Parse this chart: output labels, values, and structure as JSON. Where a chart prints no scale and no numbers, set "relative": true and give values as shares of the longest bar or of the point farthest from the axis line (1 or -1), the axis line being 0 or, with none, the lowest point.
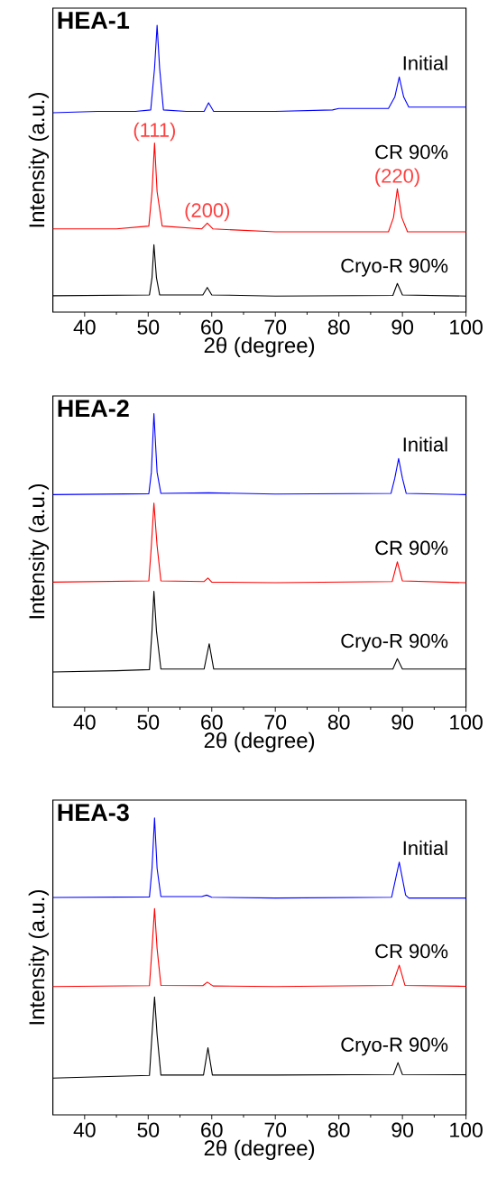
{
  "chart_data": [
    {
      "type": "line",
      "title": "HEA-1",
      "xlabel": "2θ (degree)",
      "ylabel": "Intensity (a.u.)",
      "xlim": [
        35,
        100
      ],
      "xticks": [
        40,
        50,
        60,
        70,
        80,
        90,
        100
      ],
      "relative": true,
      "series": [
        {
          "name": "Initial",
          "color": "#0000ff",
          "x": [
            35,
            42,
            48,
            50.4,
            51.0,
            51.4,
            51.8,
            52.4,
            56,
            58.8,
            59.5,
            60.3,
            70,
            79,
            80,
            87.8,
            88.8,
            89.5,
            90.2,
            91,
            95,
            100
          ],
          "values": [
            0.695,
            0.7,
            0.7,
            0.705,
            0.85,
            1.0,
            0.85,
            0.705,
            0.7,
            0.7,
            0.73,
            0.7,
            0.7,
            0.705,
            0.71,
            0.71,
            0.75,
            0.82,
            0.75,
            0.715,
            0.715,
            0.715
          ]
        },
        {
          "name": "CR 90%",
          "color": "#ff0000",
          "x": [
            35,
            45,
            50.1,
            50.6,
            51.0,
            51.4,
            52.2,
            58.4,
            59.3,
            60.2,
            70,
            87.8,
            88.6,
            89.2,
            89.9,
            90.8,
            100
          ],
          "values": [
            0.29,
            0.29,
            0.3,
            0.42,
            0.59,
            0.42,
            0.3,
            0.29,
            0.31,
            0.29,
            0.28,
            0.28,
            0.33,
            0.43,
            0.33,
            0.28,
            0.28
          ]
        },
        {
          "name": "Cryo-R 90%",
          "color": "#000000",
          "x": [
            35,
            50.2,
            50.6,
            50.9,
            51.3,
            51.8,
            58.6,
            59.3,
            60,
            70,
            88.5,
            89.2,
            90,
            100
          ],
          "values": [
            0.057,
            0.06,
            0.12,
            0.235,
            0.12,
            0.06,
            0.06,
            0.086,
            0.06,
            0.056,
            0.058,
            0.1,
            0.06,
            0.056
          ]
        }
      ],
      "annotations": [
        {
          "text": "(111)",
          "x": 51.0,
          "y": 0.59
        },
        {
          "text": "(200)",
          "x": 59.3,
          "y": 0.31
        },
        {
          "text": "(220)",
          "x": 89.2,
          "y": 0.43
        }
      ]
    },
    {
      "type": "line",
      "title": "HEA-2",
      "xlabel": "2θ (degree)",
      "ylabel": "Intensity (a.u.)",
      "xlim": [
        35,
        100
      ],
      "xticks": [
        40,
        50,
        60,
        70,
        80,
        90,
        100
      ],
      "relative": true,
      "series": [
        {
          "name": "Initial",
          "color": "#0000ff",
          "x": [
            35,
            50.1,
            50.5,
            50.9,
            51.4,
            52,
            59.5,
            70,
            88.2,
            88.8,
            89.4,
            90,
            90.6,
            100
          ],
          "values": [
            0.724,
            0.727,
            0.8,
            1.0,
            0.8,
            0.728,
            0.73,
            0.726,
            0.728,
            0.78,
            0.847,
            0.78,
            0.728,
            0.724
          ]
        },
        {
          "name": "CR 90%",
          "color": "#ff0000",
          "x": [
            35,
            50.1,
            50.5,
            50.9,
            51.4,
            52,
            58.8,
            59.4,
            60,
            70,
            88.4,
            89.2,
            90,
            100
          ],
          "values": [
            0.426,
            0.43,
            0.55,
            0.695,
            0.55,
            0.43,
            0.428,
            0.44,
            0.426,
            0.424,
            0.428,
            0.495,
            0.43,
            0.424
          ]
        },
        {
          "name": "Cryo-R 90%",
          "color": "#000000",
          "x": [
            35,
            45,
            50.2,
            50.6,
            50.9,
            51.3,
            52,
            58.8,
            59.6,
            60.3,
            70,
            88.5,
            89.2,
            90,
            100
          ],
          "values": [
            0.12,
            0.124,
            0.128,
            0.26,
            0.395,
            0.26,
            0.13,
            0.13,
            0.216,
            0.13,
            0.13,
            0.13,
            0.165,
            0.13,
            0.13
          ]
        }
      ]
    },
    {
      "type": "line",
      "title": "HEA-3",
      "xlabel": "2θ (degree)",
      "ylabel": "Intensity (a.u.)",
      "xlim": [
        35,
        100
      ],
      "xticks": [
        40,
        50,
        60,
        70,
        80,
        90,
        100
      ],
      "relative": true,
      "series": [
        {
          "name": "Initial",
          "color": "#0000ff",
          "x": [
            35,
            50.2,
            50.6,
            51.0,
            51.4,
            52,
            58.4,
            59.2,
            60,
            70,
            88.3,
            89.5,
            90.5,
            91,
            100
          ],
          "values": [
            0.732,
            0.734,
            0.83,
            1.0,
            0.83,
            0.735,
            0.735,
            0.74,
            0.733,
            0.73,
            0.733,
            0.851,
            0.74,
            0.73,
            0.73
          ]
        },
        {
          "name": "CR 90%",
          "color": "#ff0000",
          "x": [
            35,
            50.2,
            50.6,
            51,
            51.4,
            52,
            58.6,
            59.3,
            60.2,
            70,
            88.4,
            89.5,
            90.4,
            100
          ],
          "values": [
            0.432,
            0.435,
            0.56,
            0.695,
            0.56,
            0.436,
            0.435,
            0.447,
            0.434,
            0.432,
            0.436,
            0.504,
            0.436,
            0.433
          ]
        },
        {
          "name": "Cryo-R 90%",
          "color": "#000000",
          "x": [
            35,
            45,
            50.2,
            50.6,
            51,
            51.4,
            52,
            58.7,
            59.4,
            60.1,
            70,
            88.6,
            89.3,
            90,
            100
          ],
          "values": [
            0.124,
            0.13,
            0.133,
            0.27,
            0.397,
            0.27,
            0.134,
            0.134,
            0.226,
            0.134,
            0.134,
            0.136,
            0.176,
            0.136,
            0.135
          ]
        }
      ]
    }
  ]
}
